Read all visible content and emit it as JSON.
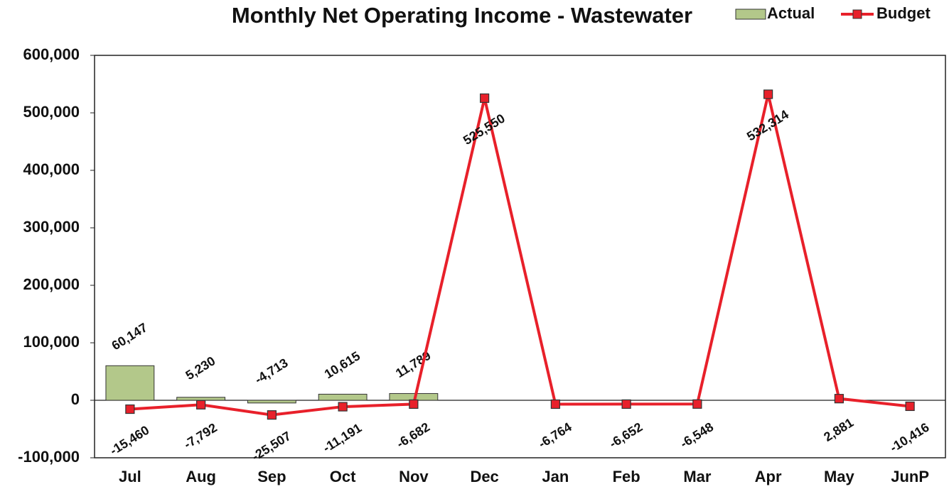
{
  "chart_data": {
    "type": "combo",
    "title": "Monthly Net Operating Income - Wastewater",
    "categories": [
      "Jul",
      "Aug",
      "Sep",
      "Oct",
      "Nov",
      "Dec",
      "Jan",
      "Feb",
      "Mar",
      "Apr",
      "May",
      "JunP"
    ],
    "series": [
      {
        "name": "Actual",
        "type": "bar",
        "color": "#b3c88a",
        "values": [
          60147,
          5230,
          -4713,
          10615,
          11789,
          null,
          null,
          null,
          null,
          null,
          null,
          null
        ],
        "value_labels": [
          "60,147",
          "5,230",
          "-4,713",
          "10,615",
          "11,789",
          null,
          null,
          null,
          null,
          null,
          null,
          null
        ]
      },
      {
        "name": "Budget",
        "type": "line",
        "color": "#e8202a",
        "values": [
          -15460,
          -7792,
          -25507,
          -11191,
          -6682,
          525550,
          -6764,
          -6652,
          -6548,
          532314,
          2881,
          -10416
        ],
        "value_labels": [
          "-15,460",
          "-7,792",
          "-25,507",
          "-11,191",
          "-6,682",
          "525,550",
          "-6,764",
          "-6,652",
          "-6,548",
          "532,314",
          "2,881",
          "-10,416"
        ]
      }
    ],
    "ylim": [
      -100000,
      600000
    ],
    "yticks": [
      {
        "value": -100000,
        "label": "-100,000"
      },
      0,
      {
        "value": 100000,
        "label": "100,000"
      },
      {
        "value": 200000,
        "label": "200,000"
      },
      {
        "value": 300000,
        "label": "300,000"
      },
      {
        "value": 400000,
        "label": "400,000"
      },
      {
        "value": 500000,
        "label": "500,000"
      },
      {
        "value": 600000,
        "label": "600,000"
      }
    ],
    "legend": "top-right"
  }
}
